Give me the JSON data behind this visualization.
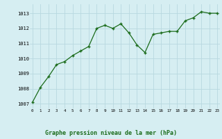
{
  "x": [
    0,
    1,
    2,
    3,
    4,
    5,
    6,
    7,
    8,
    9,
    10,
    11,
    12,
    13,
    14,
    15,
    16,
    17,
    18,
    19,
    20,
    21,
    22,
    23
  ],
  "y": [
    1007.1,
    1008.1,
    1008.8,
    1009.6,
    1009.8,
    1010.2,
    1010.5,
    1010.8,
    1012.0,
    1012.2,
    1012.0,
    1012.3,
    1011.7,
    1010.9,
    1010.4,
    1011.6,
    1011.7,
    1011.8,
    1011.8,
    1012.5,
    1012.7,
    1013.1,
    1013.0,
    1013.0
  ],
  "line_color": "#1a6b1a",
  "marker_color": "#1a6b1a",
  "bg_color": "#d6eef2",
  "grid_color": "#b8d8e0",
  "xlabel": "Graphe pression niveau de la mer (hPa)",
  "xlabel_color": "#1a6b1a",
  "ylabel_ticks": [
    1007,
    1008,
    1009,
    1010,
    1011,
    1012,
    1013
  ],
  "xticks": [
    0,
    1,
    2,
    3,
    4,
    5,
    6,
    7,
    8,
    9,
    10,
    11,
    12,
    13,
    14,
    15,
    16,
    17,
    18,
    19,
    20,
    21,
    22,
    23
  ],
  "xlim": [
    -0.3,
    23.3
  ],
  "ylim": [
    1006.7,
    1013.6
  ]
}
